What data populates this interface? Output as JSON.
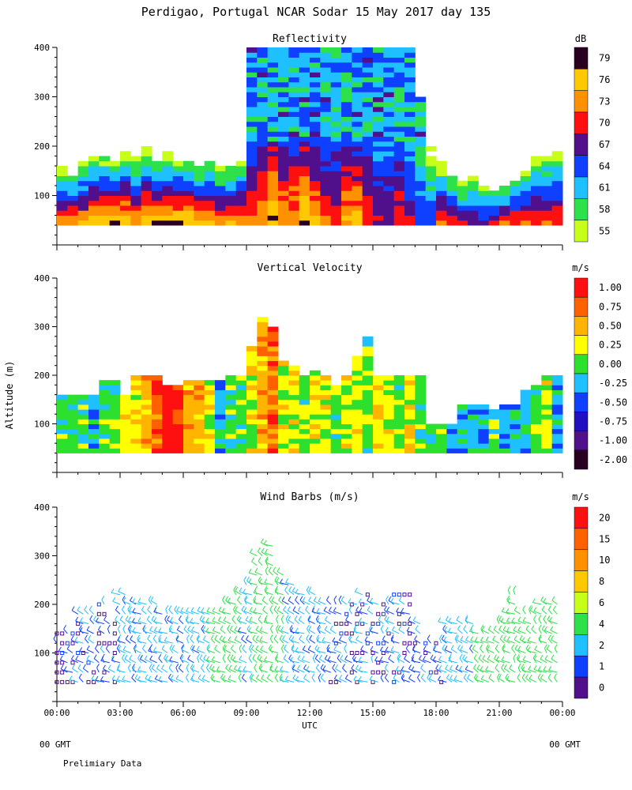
{
  "page_title": "Perdigao, Portugal  NCAR Sodar  15 May 2017  day 135",
  "y_axis_label": "Altitude (m)",
  "x_axis_label": "UTC",
  "footer": {
    "left_gmt": "00 GMT",
    "right_gmt": "00 GMT",
    "note": "Prelimiary Data"
  },
  "x_ticks": [
    "00:00",
    "03:00",
    "06:00",
    "09:00",
    "12:00",
    "15:00",
    "18:00",
    "21:00",
    "00:00"
  ],
  "chart_data": [
    {
      "type": "heatmap",
      "title": "Reflectivity",
      "unit": "dB",
      "ylim": [
        0,
        400
      ],
      "y_ticks": [
        "100",
        "200",
        "300",
        "400"
      ],
      "colorbar_labels": [
        "55",
        "58",
        "61",
        "64",
        "67",
        "70",
        "73",
        "76",
        "79"
      ],
      "colorbar_colors": [
        "#c8ff1a",
        "#2ee04a",
        "#1ec0ff",
        "#1040ff",
        "#50108c",
        "#ff1010",
        "#ff9000",
        "#ffc800",
        "#2a0020"
      ],
      "x_hours": [
        0.0,
        0.5,
        1.0,
        1.5,
        2.0,
        2.5,
        3.0,
        3.5,
        4.0,
        4.5,
        5.0,
        5.5,
        6.0,
        6.5,
        7.0,
        7.5,
        8.0,
        8.5,
        9.0,
        9.5,
        10.0,
        10.5,
        11.0,
        11.5,
        12.0,
        12.5,
        13.0,
        13.5,
        14.0,
        14.5,
        15.0,
        15.5,
        16.0,
        16.5,
        17.0,
        17.5,
        18.0,
        18.5,
        19.0,
        19.5,
        20.0,
        20.5,
        21.0,
        21.5,
        22.0,
        22.5,
        23.0,
        23.5
      ],
      "echo_top_m": [
        160,
        150,
        170,
        180,
        180,
        175,
        190,
        180,
        200,
        180,
        190,
        175,
        180,
        170,
        180,
        160,
        170,
        180,
        400,
        400,
        400,
        400,
        400,
        400,
        400,
        400,
        400,
        400,
        400,
        400,
        400,
        400,
        400,
        400,
        300,
        200,
        170,
        150,
        130,
        140,
        120,
        110,
        120,
        140,
        160,
        180,
        200,
        210
      ],
      "surface_db": [
        76,
        76,
        76,
        79,
        79,
        79,
        79,
        76,
        79,
        79,
        79,
        79,
        79,
        76,
        76,
        76,
        76,
        76,
        73,
        76,
        79,
        76,
        76,
        79,
        76,
        73,
        73,
        76,
        76,
        73,
        70,
        70,
        73,
        70,
        67,
        67,
        73,
        73,
        70,
        70,
        70,
        73,
        73,
        73,
        73,
        73,
        73,
        73
      ]
    },
    {
      "type": "heatmap",
      "title": "Vertical Velocity",
      "unit": "m/s",
      "ylim": [
        0,
        400
      ],
      "y_ticks": [
        "100",
        "200",
        "300",
        "400"
      ],
      "colorbar_labels": [
        "1.00",
        "0.75",
        "0.50",
        "0.25",
        "0.00",
        "-0.25",
        "-0.50",
        "-0.75",
        "-1.00",
        "-2.00"
      ],
      "colorbar_colors": [
        "#ff1010",
        "#ff6000",
        "#ffb400",
        "#ffff00",
        "#2ee02e",
        "#1ec0ff",
        "#1040ff",
        "#2010c0",
        "#50108c",
        "#2a0020"
      ],
      "x_hours": [
        0.0,
        0.5,
        1.0,
        1.5,
        2.0,
        2.5,
        3.0,
        3.5,
        4.0,
        4.5,
        5.0,
        5.5,
        6.0,
        6.5,
        7.0,
        7.5,
        8.0,
        8.5,
        9.0,
        9.5,
        10.0,
        10.5,
        11.0,
        11.5,
        12.0,
        12.5,
        13.0,
        13.5,
        14.0,
        14.5,
        15.0,
        15.5,
        16.0,
        16.5,
        17.0,
        17.5,
        18.0,
        18.5,
        19.0,
        19.5,
        20.0,
        20.5,
        21.0,
        21.5,
        22.0,
        22.5,
        23.0,
        23.5
      ],
      "top_m": [
        160,
        160,
        160,
        160,
        190,
        190,
        160,
        200,
        200,
        200,
        180,
        180,
        190,
        190,
        190,
        190,
        200,
        200,
        260,
        320,
        300,
        230,
        220,
        200,
        210,
        200,
        180,
        200,
        240,
        280,
        200,
        200,
        200,
        200,
        200,
        100,
        100,
        100,
        140,
        140,
        140,
        130,
        140,
        140,
        170,
        180,
        200,
        200
      ],
      "w_ms": [
        0.0,
        0.0,
        0.0,
        -0.25,
        0.0,
        0.0,
        0.25,
        0.25,
        0.5,
        0.75,
        1.0,
        1.0,
        0.5,
        0.5,
        0.25,
        -0.25,
        0.0,
        0.0,
        0.25,
        0.5,
        0.75,
        0.25,
        0.25,
        0.0,
        0.25,
        0.25,
        0.0,
        0.25,
        0.25,
        0.0,
        0.25,
        0.25,
        0.0,
        0.25,
        0.0,
        0.0,
        0.0,
        -0.25,
        -0.25,
        -0.25,
        -0.25,
        0.0,
        -0.25,
        -0.25,
        -0.25,
        0.0,
        0.25,
        -0.25
      ]
    },
    {
      "type": "scatter",
      "title": "Wind Barbs (m/s)",
      "unit": "m/s",
      "ylim": [
        0,
        400
      ],
      "y_ticks": [
        "100",
        "200",
        "300",
        "400"
      ],
      "colorbar_labels": [
        "20",
        "15",
        "10",
        "8",
        "6",
        "4",
        "2",
        "1",
        "0"
      ],
      "colorbar_colors": [
        "#ff1010",
        "#ff6000",
        "#ff9000",
        "#ffc800",
        "#c8ff1a",
        "#2ee04a",
        "#1ec0ff",
        "#1040ff",
        "#50108c"
      ],
      "x_hours": [
        0.0,
        0.5,
        1.0,
        1.5,
        2.0,
        2.5,
        3.0,
        3.5,
        4.0,
        4.5,
        5.0,
        5.5,
        6.0,
        6.5,
        7.0,
        7.5,
        8.0,
        8.5,
        9.0,
        9.5,
        10.0,
        10.5,
        11.0,
        11.5,
        12.0,
        12.5,
        13.0,
        13.5,
        14.0,
        14.5,
        15.0,
        15.5,
        16.0,
        16.5,
        17.0,
        17.5,
        18.0,
        18.5,
        19.0,
        19.5,
        20.0,
        20.5,
        21.0,
        21.5,
        22.0,
        22.5,
        23.0,
        23.5
      ],
      "top_m": [
        140,
        140,
        180,
        180,
        200,
        160,
        220,
        200,
        200,
        200,
        190,
        190,
        180,
        180,
        180,
        190,
        200,
        220,
        240,
        300,
        320,
        260,
        240,
        220,
        220,
        200,
        200,
        200,
        210,
        220,
        200,
        200,
        220,
        220,
        170,
        120,
        120,
        160,
        160,
        160,
        150,
        150,
        160,
        220,
        180,
        190,
        200,
        210
      ],
      "speed_ms": [
        0,
        0,
        1,
        1,
        1,
        1,
        2,
        2,
        2,
        2,
        2,
        2,
        2,
        2,
        2,
        4,
        4,
        4,
        2,
        4,
        4,
        4,
        2,
        2,
        2,
        2,
        1,
        1,
        1,
        1,
        1,
        1,
        1,
        1,
        1,
        1,
        1,
        2,
        2,
        2,
        4,
        4,
        4,
        4,
        4,
        4,
        4,
        4
      ]
    }
  ]
}
